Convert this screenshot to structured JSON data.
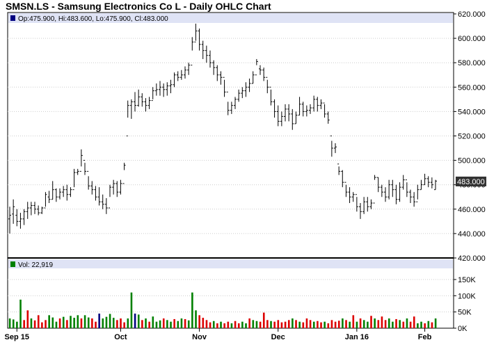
{
  "title": "SMSN.LS - Samsung Electronics Co L - Daily OHLC Chart",
  "chart_data": {
    "type": "ohlc",
    "legend": {
      "price": "Op:475.900, Hi:483.600, Lo:475.900, Cl:483.000",
      "volume": "Vol: 22,919"
    },
    "last_price_label": "483.000",
    "price_axis": {
      "ylim": [
        420,
        620
      ],
      "ticks": [
        "620.000",
        "600.000",
        "580.000",
        "560.000",
        "540.000",
        "520.000",
        "500.000",
        "480.000",
        "460.000",
        "440.000",
        "420.000"
      ]
    },
    "volume_axis": {
      "ylim": [
        0,
        180000
      ],
      "ticks": [
        "150K",
        "100K",
        "50K",
        "0K"
      ]
    },
    "months": [
      "Sep 15",
      "Oct",
      "Nov",
      "Dec",
      "Jan 16",
      "Feb"
    ],
    "colors": {
      "up": "#008000",
      "down": "#dd0000",
      "neutral": "#000080",
      "legend_band": "#dfe3f5",
      "last_label_bg": "#333333"
    },
    "bars": [
      {
        "o": 452,
        "h": 462,
        "l": 440,
        "c": 455,
        "v": 30000,
        "d": "up"
      },
      {
        "o": 456,
        "h": 468,
        "l": 448,
        "c": 462,
        "v": 27000,
        "d": "up"
      },
      {
        "o": 455,
        "h": 460,
        "l": 446,
        "c": 450,
        "v": 20000,
        "d": "up"
      },
      {
        "o": 450,
        "h": 457,
        "l": 444,
        "c": 452,
        "v": 88000,
        "d": "up"
      },
      {
        "o": 452,
        "h": 460,
        "l": 447,
        "c": 458,
        "v": 25000,
        "d": "down"
      },
      {
        "o": 458,
        "h": 466,
        "l": 452,
        "c": 461,
        "v": 55000,
        "d": "down"
      },
      {
        "o": 461,
        "h": 466,
        "l": 455,
        "c": 463,
        "v": 30000,
        "d": "up"
      },
      {
        "o": 463,
        "h": 466,
        "l": 456,
        "c": 460,
        "v": 24000,
        "d": "down"
      },
      {
        "o": 460,
        "h": 463,
        "l": 455,
        "c": 457,
        "v": 40000,
        "d": "down"
      },
      {
        "o": 457,
        "h": 462,
        "l": 456,
        "c": 461,
        "v": 18000,
        "d": "down"
      },
      {
        "o": 461,
        "h": 474,
        "l": 462,
        "c": 472,
        "v": 25000,
        "d": "down"
      },
      {
        "o": 470,
        "h": 475,
        "l": 465,
        "c": 468,
        "v": 40000,
        "d": "up"
      },
      {
        "o": 468,
        "h": 483,
        "l": 468,
        "c": 476,
        "v": 33000,
        "d": "up"
      },
      {
        "o": 476,
        "h": 477,
        "l": 466,
        "c": 470,
        "v": 20000,
        "d": "up"
      },
      {
        "o": 470,
        "h": 477,
        "l": 468,
        "c": 474,
        "v": 30000,
        "d": "down"
      },
      {
        "o": 474,
        "h": 479,
        "l": 470,
        "c": 476,
        "v": 35000,
        "d": "up"
      },
      {
        "o": 476,
        "h": 480,
        "l": 467,
        "c": 472,
        "v": 25000,
        "d": "down"
      },
      {
        "o": 472,
        "h": 478,
        "l": 470,
        "c": 476,
        "v": 38000,
        "d": "up"
      },
      {
        "o": 476,
        "h": 493,
        "l": 478,
        "c": 490,
        "v": 32000,
        "d": "up"
      },
      {
        "o": 490,
        "h": 493,
        "l": 488,
        "c": 491,
        "v": 40000,
        "d": "up"
      },
      {
        "o": 491,
        "h": 509,
        "l": 495,
        "c": 504,
        "v": 30000,
        "d": "down"
      },
      {
        "o": 500,
        "h": 498,
        "l": 488,
        "c": 491,
        "v": 40000,
        "d": "up"
      },
      {
        "o": 491,
        "h": 487,
        "l": 476,
        "c": 479,
        "v": 33000,
        "d": "up"
      },
      {
        "o": 479,
        "h": 483,
        "l": 472,
        "c": 476,
        "v": 30000,
        "d": "down"
      },
      {
        "o": 476,
        "h": 479,
        "l": 467,
        "c": 470,
        "v": 20000,
        "d": "down"
      },
      {
        "o": 470,
        "h": 478,
        "l": 463,
        "c": 466,
        "v": 45000,
        "d": "neutral"
      },
      {
        "o": 466,
        "h": 472,
        "l": 460,
        "c": 464,
        "v": 30000,
        "d": "up"
      },
      {
        "o": 464,
        "h": 469,
        "l": 456,
        "c": 461,
        "v": 35000,
        "d": "up"
      },
      {
        "o": 461,
        "h": 480,
        "l": 470,
        "c": 478,
        "v": 44000,
        "d": "up"
      },
      {
        "o": 478,
        "h": 484,
        "l": 472,
        "c": 481,
        "v": 32000,
        "d": "up"
      },
      {
        "o": 481,
        "h": 483,
        "l": 470,
        "c": 474,
        "v": 25000,
        "d": "down"
      },
      {
        "o": 474,
        "h": 484,
        "l": 472,
        "c": 481,
        "v": 30000,
        "d": "down"
      },
      {
        "o": 481,
        "h": 498,
        "l": 492,
        "c": 496,
        "v": 18000,
        "d": "down"
      },
      {
        "o": 520,
        "h": 549,
        "l": 535,
        "c": 545,
        "v": 30000,
        "d": "up"
      },
      {
        "o": 545,
        "h": 550,
        "l": 534,
        "c": 548,
        "v": 110000,
        "d": "up"
      },
      {
        "o": 548,
        "h": 556,
        "l": 540,
        "c": 545,
        "v": 45000,
        "d": "neutral"
      },
      {
        "o": 545,
        "h": 558,
        "l": 544,
        "c": 552,
        "v": 42000,
        "d": "up"
      },
      {
        "o": 552,
        "h": 555,
        "l": 544,
        "c": 548,
        "v": 25000,
        "d": "down"
      },
      {
        "o": 548,
        "h": 551,
        "l": 540,
        "c": 545,
        "v": 30000,
        "d": "up"
      },
      {
        "o": 545,
        "h": 552,
        "l": 542,
        "c": 549,
        "v": 20000,
        "d": "down"
      },
      {
        "o": 549,
        "h": 560,
        "l": 550,
        "c": 557,
        "v": 36000,
        "d": "up"
      },
      {
        "o": 557,
        "h": 563,
        "l": 553,
        "c": 558,
        "v": 20000,
        "d": "up"
      },
      {
        "o": 558,
        "h": 565,
        "l": 553,
        "c": 560,
        "v": 24000,
        "d": "up"
      },
      {
        "o": 560,
        "h": 563,
        "l": 552,
        "c": 558,
        "v": 30000,
        "d": "down"
      },
      {
        "o": 558,
        "h": 564,
        "l": 553,
        "c": 561,
        "v": 25000,
        "d": "up"
      },
      {
        "o": 561,
        "h": 566,
        "l": 555,
        "c": 562,
        "v": 20000,
        "d": "up"
      },
      {
        "o": 562,
        "h": 572,
        "l": 560,
        "c": 570,
        "v": 28000,
        "d": "down"
      },
      {
        "o": 570,
        "h": 573,
        "l": 565,
        "c": 568,
        "v": 22000,
        "d": "up"
      },
      {
        "o": 568,
        "h": 574,
        "l": 566,
        "c": 570,
        "v": 30000,
        "d": "up"
      },
      {
        "o": 570,
        "h": 577,
        "l": 567,
        "c": 574,
        "v": 28000,
        "d": "down"
      },
      {
        "o": 574,
        "h": 580,
        "l": 570,
        "c": 578,
        "v": 24000,
        "d": "up"
      },
      {
        "o": 578,
        "h": 601,
        "l": 590,
        "c": 597,
        "v": 110000,
        "d": "up"
      },
      {
        "o": 597,
        "h": 612,
        "l": 598,
        "c": 606,
        "v": 55000,
        "d": "up"
      },
      {
        "o": 606,
        "h": 608,
        "l": 590,
        "c": 595,
        "v": 40000,
        "d": "red"
      },
      {
        "o": 595,
        "h": 598,
        "l": 583,
        "c": 590,
        "v": 32000,
        "d": "down"
      },
      {
        "o": 590,
        "h": 594,
        "l": 580,
        "c": 586,
        "v": 25000,
        "d": "down"
      },
      {
        "o": 586,
        "h": 590,
        "l": 576,
        "c": 580,
        "v": 18000,
        "d": "down"
      },
      {
        "o": 580,
        "h": 582,
        "l": 570,
        "c": 576,
        "v": 22000,
        "d": "up"
      },
      {
        "o": 576,
        "h": 578,
        "l": 565,
        "c": 570,
        "v": 15000,
        "d": "down"
      },
      {
        "o": 570,
        "h": 573,
        "l": 562,
        "c": 568,
        "v": 20000,
        "d": "up"
      },
      {
        "o": 568,
        "h": 566,
        "l": 552,
        "c": 556,
        "v": 15000,
        "d": "down"
      },
      {
        "o": 556,
        "h": 548,
        "l": 537,
        "c": 541,
        "v": 20000,
        "d": "down"
      },
      {
        "o": 541,
        "h": 548,
        "l": 538,
        "c": 545,
        "v": 15000,
        "d": "up"
      },
      {
        "o": 545,
        "h": 552,
        "l": 542,
        "c": 550,
        "v": 22000,
        "d": "down"
      },
      {
        "o": 550,
        "h": 558,
        "l": 548,
        "c": 555,
        "v": 15000,
        "d": "down"
      },
      {
        "o": 555,
        "h": 560,
        "l": 551,
        "c": 557,
        "v": 20000,
        "d": "up"
      },
      {
        "o": 557,
        "h": 564,
        "l": 552,
        "c": 560,
        "v": 15000,
        "d": "up"
      },
      {
        "o": 560,
        "h": 567,
        "l": 556,
        "c": 563,
        "v": 30000,
        "d": "down"
      },
      {
        "o": 563,
        "h": 573,
        "l": 563,
        "c": 570,
        "v": 25000,
        "d": "up"
      },
      {
        "o": 570,
        "h": 583,
        "l": 578,
        "c": 581,
        "v": 22000,
        "d": "up"
      },
      {
        "o": 575,
        "h": 578,
        "l": 570,
        "c": 574,
        "v": 20000,
        "d": "down"
      },
      {
        "o": 574,
        "h": 576,
        "l": 565,
        "c": 568,
        "v": 48000,
        "d": "red"
      },
      {
        "o": 568,
        "h": 566,
        "l": 555,
        "c": 560,
        "v": 25000,
        "d": "down"
      },
      {
        "o": 560,
        "h": 558,
        "l": 545,
        "c": 548,
        "v": 22000,
        "d": "up"
      },
      {
        "o": 548,
        "h": 550,
        "l": 535,
        "c": 540,
        "v": 20000,
        "d": "down"
      },
      {
        "o": 540,
        "h": 545,
        "l": 528,
        "c": 532,
        "v": 25000,
        "d": "down"
      },
      {
        "o": 532,
        "h": 540,
        "l": 528,
        "c": 536,
        "v": 18000,
        "d": "down"
      },
      {
        "o": 536,
        "h": 546,
        "l": 532,
        "c": 542,
        "v": 20000,
        "d": "down"
      },
      {
        "o": 542,
        "h": 546,
        "l": 532,
        "c": 538,
        "v": 25000,
        "d": "down"
      },
      {
        "o": 538,
        "h": 542,
        "l": 525,
        "c": 530,
        "v": 30000,
        "d": "up"
      },
      {
        "o": 530,
        "h": 540,
        "l": 530,
        "c": 537,
        "v": 25000,
        "d": "down"
      },
      {
        "o": 537,
        "h": 552,
        "l": 537,
        "c": 546,
        "v": 20000,
        "d": "up"
      },
      {
        "o": 546,
        "h": 548,
        "l": 536,
        "c": 540,
        "v": 18000,
        "d": "down"
      },
      {
        "o": 540,
        "h": 545,
        "l": 536,
        "c": 541,
        "v": 30000,
        "d": "down"
      },
      {
        "o": 541,
        "h": 546,
        "l": 538,
        "c": 543,
        "v": 25000,
        "d": "down"
      },
      {
        "o": 543,
        "h": 553,
        "l": 540,
        "c": 550,
        "v": 20000,
        "d": "up"
      },
      {
        "o": 550,
        "h": 552,
        "l": 540,
        "c": 545,
        "v": 22000,
        "d": "red"
      },
      {
        "o": 545,
        "h": 550,
        "l": 542,
        "c": 547,
        "v": 18000,
        "d": "down"
      },
      {
        "o": 547,
        "h": 546,
        "l": 535,
        "c": 538,
        "v": 20000,
        "d": "up"
      },
      {
        "o": 538,
        "h": 540,
        "l": 530,
        "c": 533,
        "v": 15000,
        "d": "down"
      },
      {
        "o": 520,
        "h": 516,
        "l": 503,
        "c": 510,
        "v": 25000,
        "d": "down"
      },
      {
        "o": 510,
        "h": 514,
        "l": 506,
        "c": 511,
        "v": 20000,
        "d": "down"
      },
      {
        "o": 497,
        "h": 495,
        "l": 488,
        "c": 491,
        "v": 23000,
        "d": "down"
      },
      {
        "o": 491,
        "h": 492,
        "l": 478,
        "c": 482,
        "v": 30000,
        "d": "up"
      },
      {
        "o": 482,
        "h": 480,
        "l": 470,
        "c": 474,
        "v": 25000,
        "d": "red"
      },
      {
        "o": 474,
        "h": 478,
        "l": 465,
        "c": 470,
        "v": 20000,
        "d": "up"
      },
      {
        "o": 470,
        "h": 474,
        "l": 466,
        "c": 472,
        "v": 40000,
        "d": "red"
      },
      {
        "o": 472,
        "h": 470,
        "l": 458,
        "c": 462,
        "v": 20000,
        "d": "up"
      },
      {
        "o": 462,
        "h": 465,
        "l": 452,
        "c": 458,
        "v": 30000,
        "d": "down"
      },
      {
        "o": 458,
        "h": 470,
        "l": 456,
        "c": 466,
        "v": 25000,
        "d": "up"
      },
      {
        "o": 466,
        "h": 470,
        "l": 458,
        "c": 462,
        "v": 20000,
        "d": "up"
      },
      {
        "o": 462,
        "h": 468,
        "l": 460,
        "c": 465,
        "v": 38000,
        "d": "down"
      },
      {
        "o": 465,
        "h": 488,
        "l": 484,
        "c": 486,
        "v": 30000,
        "d": "up"
      },
      {
        "o": 486,
        "h": 486,
        "l": 474,
        "c": 478,
        "v": 25000,
        "d": "down"
      },
      {
        "o": 478,
        "h": 480,
        "l": 470,
        "c": 474,
        "v": 36000,
        "d": "red"
      },
      {
        "o": 474,
        "h": 478,
        "l": 466,
        "c": 470,
        "v": 25000,
        "d": "down"
      },
      {
        "o": 470,
        "h": 484,
        "l": 468,
        "c": 480,
        "v": 30000,
        "d": "up"
      },
      {
        "o": 480,
        "h": 484,
        "l": 470,
        "c": 476,
        "v": 20000,
        "d": "up"
      },
      {
        "o": 476,
        "h": 480,
        "l": 464,
        "c": 468,
        "v": 28000,
        "d": "red"
      },
      {
        "o": 468,
        "h": 482,
        "l": 466,
        "c": 478,
        "v": 25000,
        "d": "up"
      },
      {
        "o": 478,
        "h": 488,
        "l": 476,
        "c": 484,
        "v": 20000,
        "d": "down"
      },
      {
        "o": 484,
        "h": 482,
        "l": 470,
        "c": 474,
        "v": 30000,
        "d": "up"
      },
      {
        "o": 474,
        "h": 476,
        "l": 465,
        "c": 470,
        "v": 20000,
        "d": "down"
      },
      {
        "o": 470,
        "h": 474,
        "l": 462,
        "c": 466,
        "v": 36000,
        "d": "red"
      },
      {
        "o": 466,
        "h": 480,
        "l": 468,
        "c": 476,
        "v": 15000,
        "d": "up"
      },
      {
        "o": 476,
        "h": 484,
        "l": 476,
        "c": 480,
        "v": 20000,
        "d": "up"
      },
      {
        "o": 480,
        "h": 489,
        "l": 480,
        "c": 485,
        "v": 15000,
        "d": "down"
      },
      {
        "o": 485,
        "h": 487,
        "l": 478,
        "c": 482,
        "v": 22000,
        "d": "up"
      },
      {
        "o": 482,
        "h": 486,
        "l": 477,
        "c": 480,
        "v": 18000,
        "d": "down"
      },
      {
        "o": 476,
        "h": 484,
        "l": 476,
        "c": 483,
        "v": 30000,
        "d": "up"
      }
    ]
  }
}
